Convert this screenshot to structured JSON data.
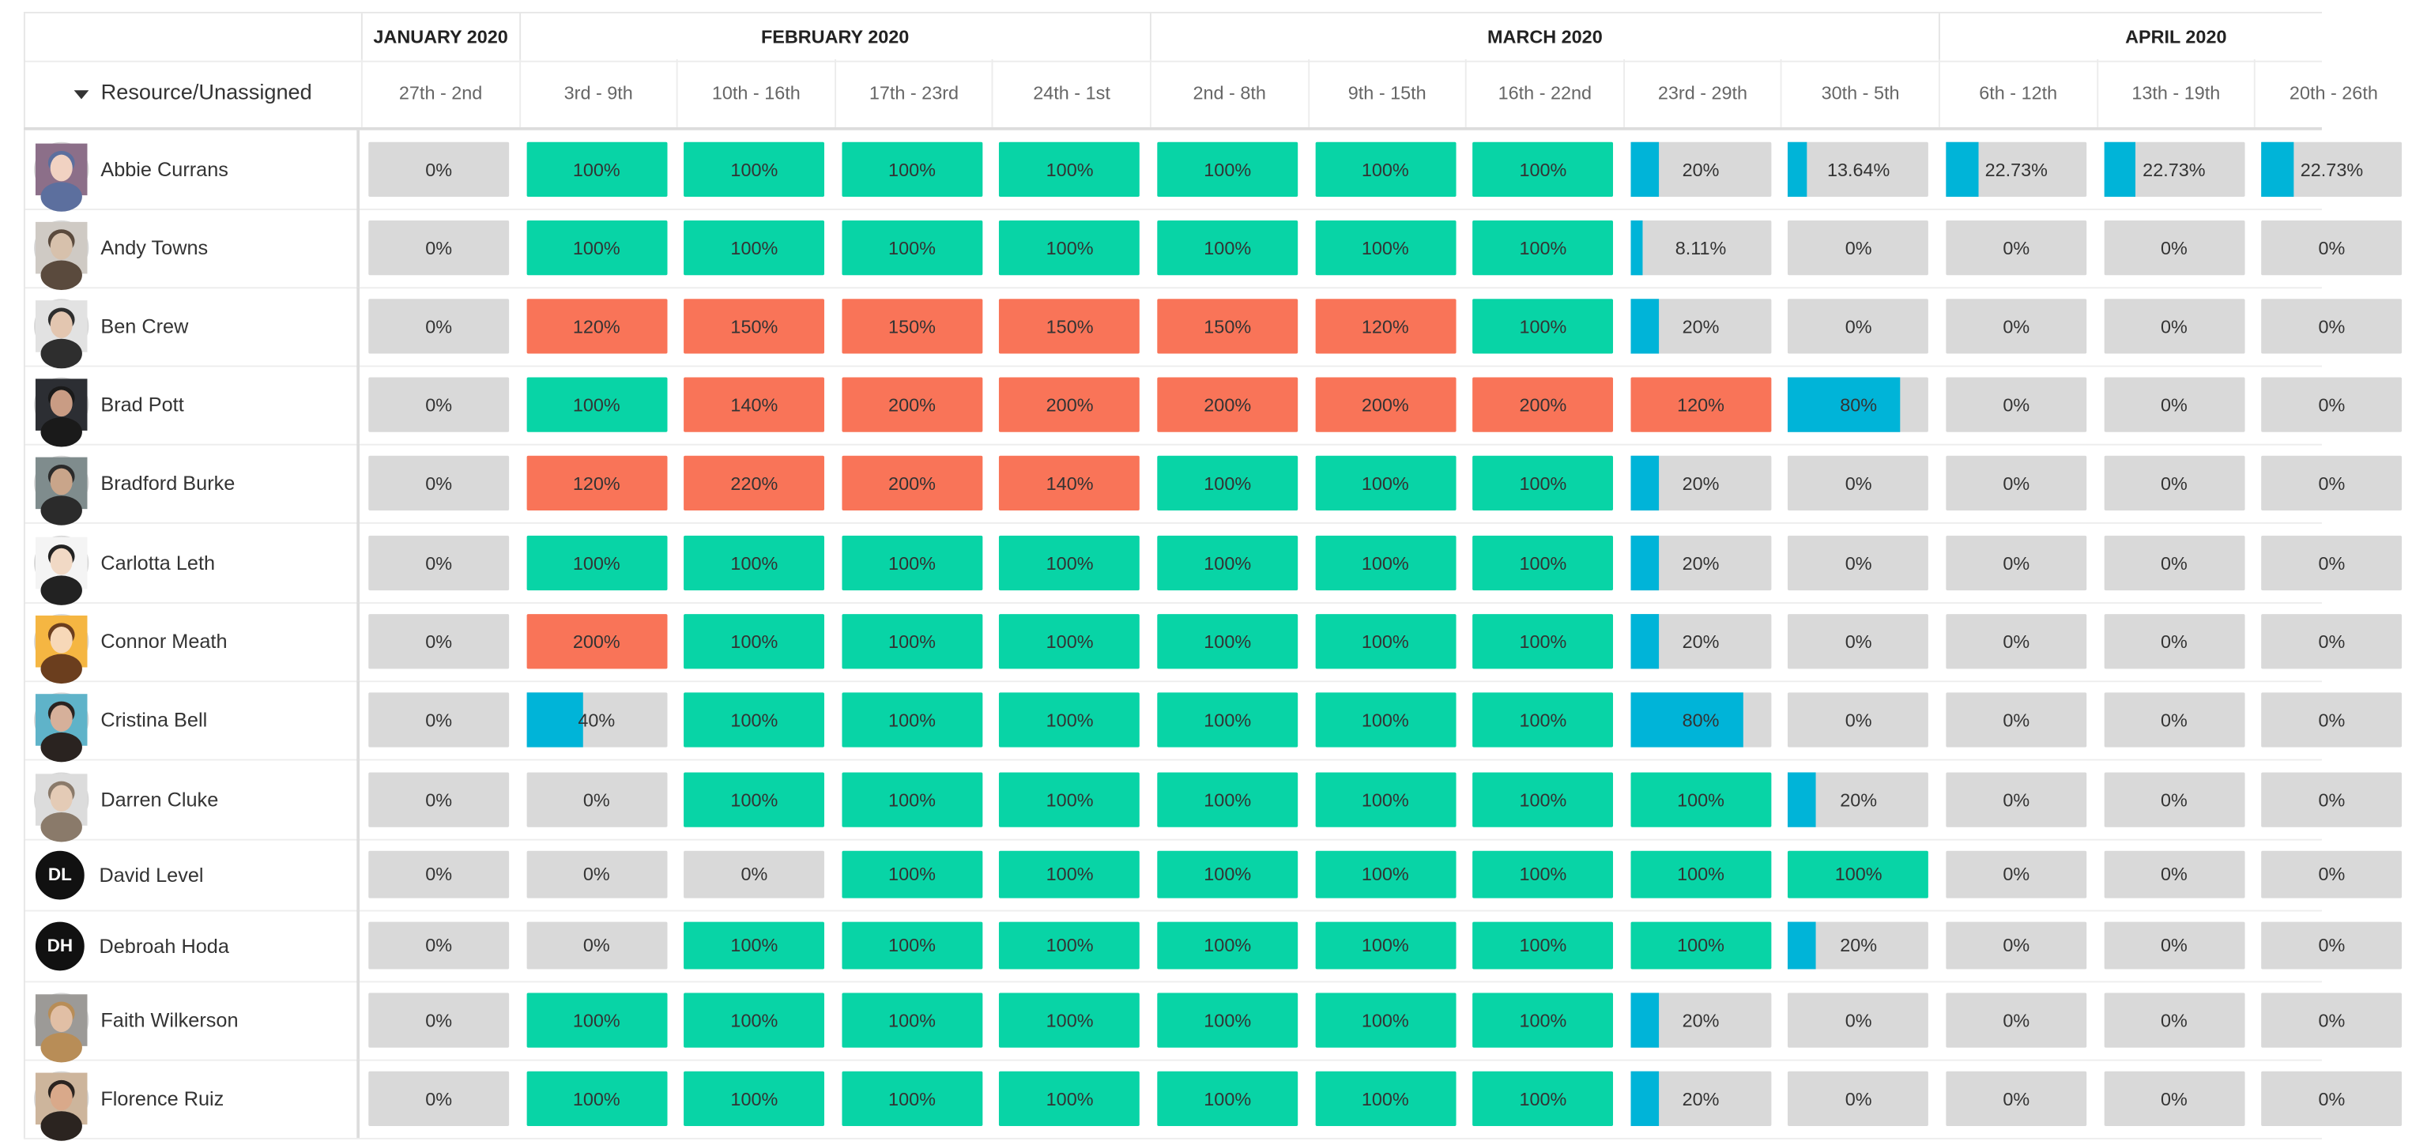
{
  "header": {
    "resource_column_label": "Resource/Unassigned",
    "months": [
      {
        "label": "JANUARY 2020",
        "weeks": 1
      },
      {
        "label": "FEBRUARY 2020",
        "weeks": 4
      },
      {
        "label": "MARCH 2020",
        "weeks": 5
      },
      {
        "label": "APRIL 2020",
        "weeks": 3
      }
    ],
    "weeks": [
      "27th - 2nd",
      "3rd - 9th",
      "10th - 16th",
      "17th - 23rd",
      "24th - 1st",
      "2nd - 8th",
      "9th - 15th",
      "16th - 22nd",
      "23rd - 29th",
      "30th - 5th",
      "6th - 12th",
      "13th - 19th",
      "20th - 26th"
    ]
  },
  "colors": {
    "full": "#08d4a6",
    "over": "#f97458",
    "partial": "#00b4d8",
    "empty": "#d9d9d9",
    "initials_bg": "#111111"
  },
  "resources": [
    {
      "name": "Abbie Currans",
      "avatar": {
        "type": "photo",
        "bg": "#8c6f89",
        "skin": "#f1d2c2",
        "hair": "#5c6f9e"
      },
      "allocations": [
        "0%",
        "100%",
        "100%",
        "100%",
        "100%",
        "100%",
        "100%",
        "100%",
        "20%",
        "13.64%",
        "22.73%",
        "22.73%",
        "22.73%"
      ]
    },
    {
      "name": "Andy Towns",
      "avatar": {
        "type": "photo",
        "bg": "#cfcac4",
        "skin": "#d7c1ac",
        "hair": "#5a4a3d"
      },
      "allocations": [
        "0%",
        "100%",
        "100%",
        "100%",
        "100%",
        "100%",
        "100%",
        "100%",
        "8.11%",
        "0%",
        "0%",
        "0%",
        "0%"
      ]
    },
    {
      "name": "Ben Crew",
      "avatar": {
        "type": "photo",
        "bg": "#e2e2e2",
        "skin": "#e3c6b0",
        "hair": "#2e2e2e"
      },
      "allocations": [
        "0%",
        "120%",
        "150%",
        "150%",
        "150%",
        "150%",
        "120%",
        "100%",
        "20%",
        "0%",
        "0%",
        "0%",
        "0%"
      ]
    },
    {
      "name": "Brad Pott",
      "avatar": {
        "type": "photo",
        "bg": "#2c2e33",
        "skin": "#c99c84",
        "hair": "#1a1a1a"
      },
      "allocations": [
        "0%",
        "100%",
        "140%",
        "200%",
        "200%",
        "200%",
        "200%",
        "200%",
        "120%",
        "80%",
        "0%",
        "0%",
        "0%"
      ]
    },
    {
      "name": "Bradford Burke",
      "avatar": {
        "type": "photo",
        "bg": "#7f8c8d",
        "skin": "#c9a58a",
        "hair": "#2b2b2b"
      },
      "allocations": [
        "0%",
        "120%",
        "220%",
        "200%",
        "140%",
        "100%",
        "100%",
        "100%",
        "20%",
        "0%",
        "0%",
        "0%",
        "0%"
      ]
    },
    {
      "name": "Carlotta Leth",
      "avatar": {
        "type": "photo",
        "bg": "#f4f4f4",
        "skin": "#f1d9c5",
        "hair": "#222222"
      },
      "allocations": [
        "0%",
        "100%",
        "100%",
        "100%",
        "100%",
        "100%",
        "100%",
        "100%",
        "20%",
        "0%",
        "0%",
        "0%",
        "0%"
      ]
    },
    {
      "name": "Connor Meath",
      "avatar": {
        "type": "photo",
        "bg": "#f5b642",
        "skin": "#f7d8b8",
        "hair": "#6b3e1e"
      },
      "allocations": [
        "0%",
        "200%",
        "100%",
        "100%",
        "100%",
        "100%",
        "100%",
        "100%",
        "20%",
        "0%",
        "0%",
        "0%",
        "0%"
      ]
    },
    {
      "name": "Cristina Bell",
      "avatar": {
        "type": "photo",
        "bg": "#5fb3c9",
        "skin": "#d6b09a",
        "hair": "#2a2320"
      },
      "allocations": [
        "0%",
        "40%",
        "100%",
        "100%",
        "100%",
        "100%",
        "100%",
        "100%",
        "80%",
        "0%",
        "0%",
        "0%",
        "0%"
      ]
    },
    {
      "name": "Darren Cluke",
      "avatar": {
        "type": "photo",
        "bg": "#dcdcdc",
        "skin": "#e4cbb6",
        "hair": "#8a7a6a"
      },
      "allocations": [
        "0%",
        "0%",
        "100%",
        "100%",
        "100%",
        "100%",
        "100%",
        "100%",
        "100%",
        "20%",
        "0%",
        "0%",
        "0%"
      ]
    },
    {
      "name": "David Level",
      "avatar": {
        "type": "initials",
        "text": "DL"
      },
      "allocations": [
        "0%",
        "0%",
        "0%",
        "100%",
        "100%",
        "100%",
        "100%",
        "100%",
        "100%",
        "100%",
        "0%",
        "0%",
        "0%"
      ]
    },
    {
      "name": "Debroah Hoda",
      "avatar": {
        "type": "initials",
        "text": "DH"
      },
      "allocations": [
        "0%",
        "0%",
        "100%",
        "100%",
        "100%",
        "100%",
        "100%",
        "100%",
        "100%",
        "20%",
        "0%",
        "0%",
        "0%"
      ]
    },
    {
      "name": "Faith Wilkerson",
      "avatar": {
        "type": "photo",
        "bg": "#9c9a97",
        "skin": "#e1bfa5",
        "hair": "#b88d57"
      },
      "allocations": [
        "0%",
        "100%",
        "100%",
        "100%",
        "100%",
        "100%",
        "100%",
        "100%",
        "20%",
        "0%",
        "0%",
        "0%",
        "0%"
      ]
    },
    {
      "name": "Florence Ruiz",
      "avatar": {
        "type": "photo",
        "bg": "#cdb59c",
        "skin": "#d9a98a",
        "hair": "#2b2420"
      },
      "allocations": [
        "0%",
        "100%",
        "100%",
        "100%",
        "100%",
        "100%",
        "100%",
        "100%",
        "20%",
        "0%",
        "0%",
        "0%",
        "0%"
      ]
    }
  ]
}
